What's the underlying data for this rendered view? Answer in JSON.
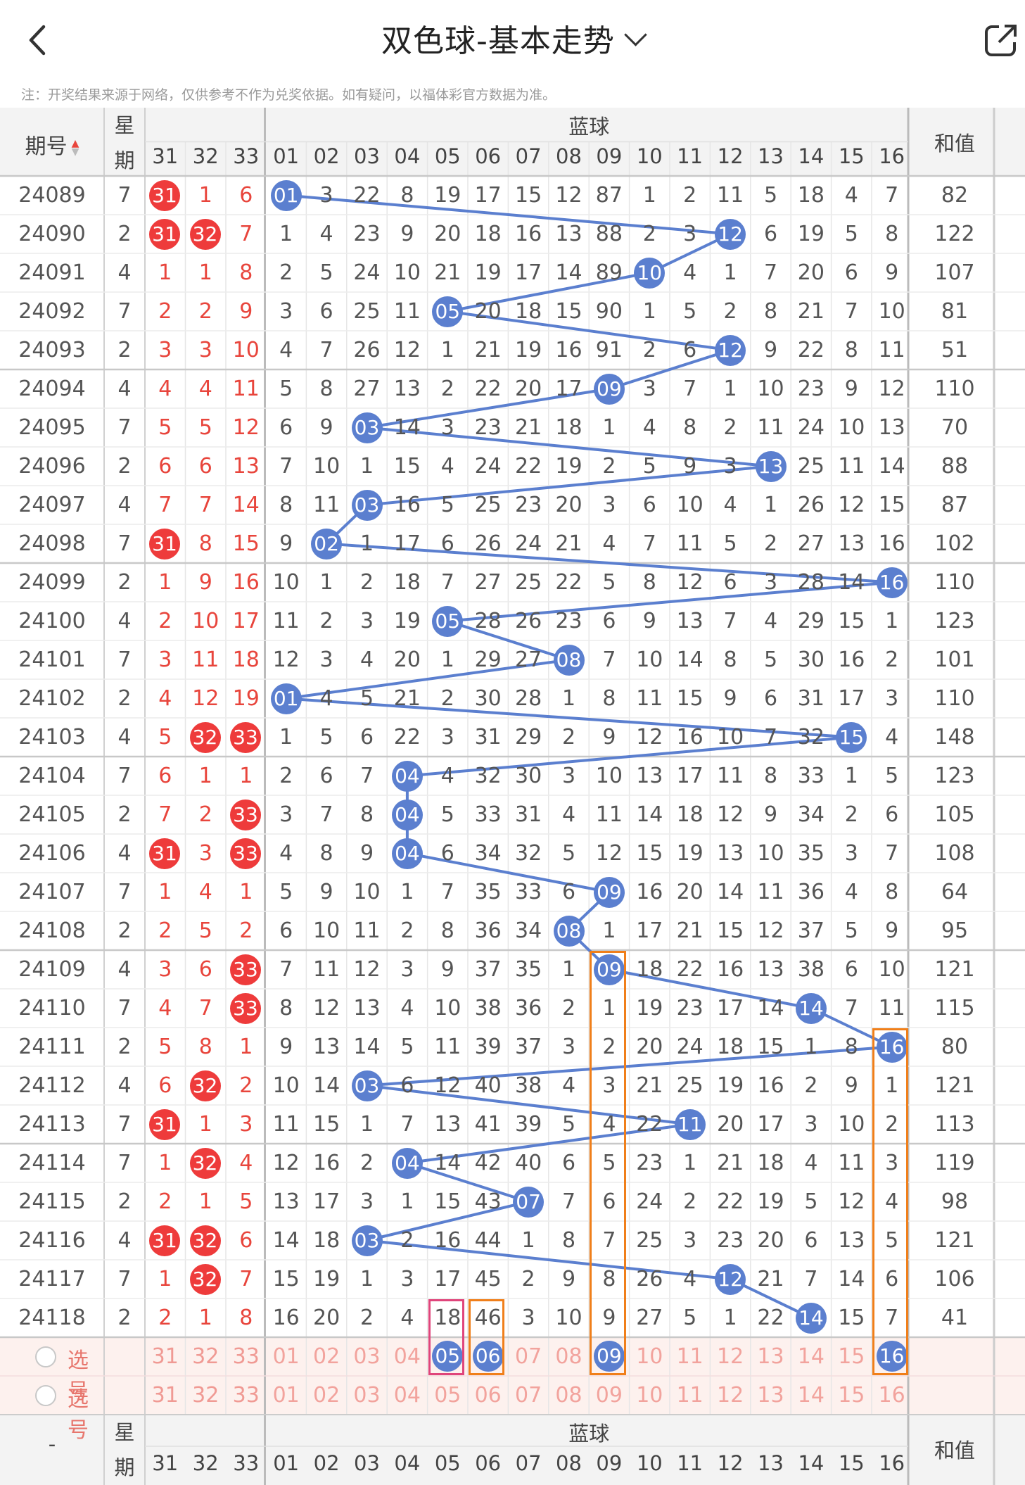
{
  "header": {
    "title": "双色球-基本走势"
  },
  "note": "注：开奖结果来源于网络，仅供参考不作为兑奖依据。如有疑问，以福体彩官方数据为准。",
  "table_header": {
    "issue_label": "期号",
    "week_label_1": "星",
    "week_label_2": "期",
    "blue_label": "蓝球",
    "sum_label": "和值",
    "red_cols": [
      "31",
      "32",
      "33"
    ],
    "blue_cols": [
      "01",
      "02",
      "03",
      "04",
      "05",
      "06",
      "07",
      "08",
      "09",
      "10",
      "11",
      "12",
      "13",
      "14",
      "15",
      "16"
    ]
  },
  "footer_header": {
    "issue_label": "-",
    "week_label_1": "星",
    "week_label_2": "期",
    "blue_label": "蓝球",
    "sum_label": "和值"
  },
  "select_label": "选号",
  "colors": {
    "red_ball": "#ee3b3b",
    "blue_ball": "#5b7fcf",
    "line": "#5b7fcf",
    "orange_box": "#f07f1a",
    "pink_box": "#e0457b",
    "header_bg": "#f3f3f3",
    "select_bg": "#fdf1ee"
  },
  "rows": [
    {
      "issue": "24089",
      "week": "7",
      "red": [
        "31",
        "1",
        "6"
      ],
      "blue": 1,
      "miss": [
        "",
        "3",
        "22",
        "8",
        "19",
        "17",
        "15",
        "12",
        "87",
        "1",
        "2",
        "11",
        "5",
        "18",
        "4",
        "7"
      ],
      "sum": "82"
    },
    {
      "issue": "24090",
      "week": "2",
      "red": [
        "31",
        "32",
        "7"
      ],
      "blue": 12,
      "miss": [
        "1",
        "4",
        "23",
        "9",
        "20",
        "18",
        "16",
        "13",
        "88",
        "2",
        "3",
        "",
        "6",
        "19",
        "5",
        "8"
      ],
      "sum": "122"
    },
    {
      "issue": "24091",
      "week": "4",
      "red": [
        "1",
        "1",
        "8"
      ],
      "blue": 10,
      "miss": [
        "2",
        "5",
        "24",
        "10",
        "21",
        "19",
        "17",
        "14",
        "89",
        "",
        "4",
        "1",
        "7",
        "20",
        "6",
        "9"
      ],
      "sum": "107"
    },
    {
      "issue": "24092",
      "week": "7",
      "red": [
        "2",
        "2",
        "9"
      ],
      "blue": 5,
      "miss": [
        "3",
        "6",
        "25",
        "11",
        "",
        "20",
        "18",
        "15",
        "90",
        "1",
        "5",
        "2",
        "8",
        "21",
        "7",
        "10"
      ],
      "sum": "81"
    },
    {
      "issue": "24093",
      "week": "2",
      "red": [
        "3",
        "3",
        "10"
      ],
      "blue": 12,
      "miss": [
        "4",
        "7",
        "26",
        "12",
        "1",
        "21",
        "19",
        "16",
        "91",
        "2",
        "6",
        "",
        "9",
        "22",
        "8",
        "11"
      ],
      "sum": "51"
    },
    {
      "issue": "24094",
      "week": "4",
      "red": [
        "4",
        "4",
        "11"
      ],
      "blue": 9,
      "miss": [
        "5",
        "8",
        "27",
        "13",
        "2",
        "22",
        "20",
        "17",
        "",
        "3",
        "7",
        "1",
        "10",
        "23",
        "9",
        "12"
      ],
      "sum": "110"
    },
    {
      "issue": "24095",
      "week": "7",
      "red": [
        "5",
        "5",
        "12"
      ],
      "blue": 3,
      "miss": [
        "6",
        "9",
        "",
        "14",
        "3",
        "23",
        "21",
        "18",
        "1",
        "4",
        "8",
        "2",
        "11",
        "24",
        "10",
        "13"
      ],
      "sum": "70"
    },
    {
      "issue": "24096",
      "week": "2",
      "red": [
        "6",
        "6",
        "13"
      ],
      "blue": 13,
      "miss": [
        "7",
        "10",
        "1",
        "15",
        "4",
        "24",
        "22",
        "19",
        "2",
        "5",
        "9",
        "3",
        "",
        "25",
        "11",
        "14"
      ],
      "sum": "88"
    },
    {
      "issue": "24097",
      "week": "4",
      "red": [
        "7",
        "7",
        "14"
      ],
      "blue": 3,
      "miss": [
        "8",
        "11",
        "",
        "16",
        "5",
        "25",
        "23",
        "20",
        "3",
        "6",
        "10",
        "4",
        "1",
        "26",
        "12",
        "15"
      ],
      "sum": "87"
    },
    {
      "issue": "24098",
      "week": "7",
      "red": [
        "31",
        "8",
        "15"
      ],
      "blue": 2,
      "miss": [
        "9",
        "",
        "1",
        "17",
        "6",
        "26",
        "24",
        "21",
        "4",
        "7",
        "11",
        "5",
        "2",
        "27",
        "13",
        "16"
      ],
      "sum": "102"
    },
    {
      "issue": "24099",
      "week": "2",
      "red": [
        "1",
        "9",
        "16"
      ],
      "blue": 16,
      "miss": [
        "10",
        "1",
        "2",
        "18",
        "7",
        "27",
        "25",
        "22",
        "5",
        "8",
        "12",
        "6",
        "3",
        "28",
        "14",
        ""
      ],
      "sum": "110"
    },
    {
      "issue": "24100",
      "week": "4",
      "red": [
        "2",
        "10",
        "17"
      ],
      "blue": 5,
      "miss": [
        "11",
        "2",
        "3",
        "19",
        "",
        "28",
        "26",
        "23",
        "6",
        "9",
        "13",
        "7",
        "4",
        "29",
        "15",
        "1"
      ],
      "sum": "123"
    },
    {
      "issue": "24101",
      "week": "7",
      "red": [
        "3",
        "11",
        "18"
      ],
      "blue": 8,
      "miss": [
        "12",
        "3",
        "4",
        "20",
        "1",
        "29",
        "27",
        "",
        "7",
        "10",
        "14",
        "8",
        "5",
        "30",
        "16",
        "2"
      ],
      "sum": "101"
    },
    {
      "issue": "24102",
      "week": "2",
      "red": [
        "4",
        "12",
        "19"
      ],
      "blue": 1,
      "miss": [
        "",
        "4",
        "5",
        "21",
        "2",
        "30",
        "28",
        "1",
        "8",
        "11",
        "15",
        "9",
        "6",
        "31",
        "17",
        "3"
      ],
      "sum": "110"
    },
    {
      "issue": "24103",
      "week": "4",
      "red": [
        "5",
        "32",
        "33"
      ],
      "blue": 15,
      "miss": [
        "1",
        "5",
        "6",
        "22",
        "3",
        "31",
        "29",
        "2",
        "9",
        "12",
        "16",
        "10",
        "7",
        "32",
        "",
        "4"
      ],
      "sum": "148"
    },
    {
      "issue": "24104",
      "week": "7",
      "red": [
        "6",
        "1",
        "1"
      ],
      "blue": 4,
      "miss": [
        "2",
        "6",
        "7",
        "",
        "4",
        "32",
        "30",
        "3",
        "10",
        "13",
        "17",
        "11",
        "8",
        "33",
        "1",
        "5"
      ],
      "sum": "123"
    },
    {
      "issue": "24105",
      "week": "2",
      "red": [
        "7",
        "2",
        "33"
      ],
      "blue": 4,
      "miss": [
        "3",
        "7",
        "8",
        "",
        "5",
        "33",
        "31",
        "4",
        "11",
        "14",
        "18",
        "12",
        "9",
        "34",
        "2",
        "6"
      ],
      "sum": "105"
    },
    {
      "issue": "24106",
      "week": "4",
      "red": [
        "31",
        "3",
        "33"
      ],
      "blue": 4,
      "miss": [
        "4",
        "8",
        "9",
        "",
        "6",
        "34",
        "32",
        "5",
        "12",
        "15",
        "19",
        "13",
        "10",
        "35",
        "3",
        "7"
      ],
      "sum": "108"
    },
    {
      "issue": "24107",
      "week": "7",
      "red": [
        "1",
        "4",
        "1"
      ],
      "blue": 9,
      "miss": [
        "5",
        "9",
        "10",
        "1",
        "7",
        "35",
        "33",
        "6",
        "",
        "16",
        "20",
        "14",
        "11",
        "36",
        "4",
        "8"
      ],
      "sum": "64"
    },
    {
      "issue": "24108",
      "week": "2",
      "red": [
        "2",
        "5",
        "2"
      ],
      "blue": 8,
      "miss": [
        "6",
        "10",
        "11",
        "2",
        "8",
        "36",
        "34",
        "",
        "1",
        "17",
        "21",
        "15",
        "12",
        "37",
        "5",
        "9"
      ],
      "sum": "95"
    },
    {
      "issue": "24109",
      "week": "4",
      "red": [
        "3",
        "6",
        "33"
      ],
      "blue": 9,
      "miss": [
        "7",
        "11",
        "12",
        "3",
        "9",
        "37",
        "35",
        "1",
        "",
        "18",
        "22",
        "16",
        "13",
        "38",
        "6",
        "10"
      ],
      "sum": "121"
    },
    {
      "issue": "24110",
      "week": "7",
      "red": [
        "4",
        "7",
        "33"
      ],
      "blue": 14,
      "miss": [
        "8",
        "12",
        "13",
        "4",
        "10",
        "38",
        "36",
        "2",
        "1",
        "19",
        "23",
        "17",
        "14",
        "",
        "7",
        "11"
      ],
      "sum": "115"
    },
    {
      "issue": "24111",
      "week": "2",
      "red": [
        "5",
        "8",
        "1"
      ],
      "blue": 16,
      "miss": [
        "9",
        "13",
        "14",
        "5",
        "11",
        "39",
        "37",
        "3",
        "2",
        "20",
        "24",
        "18",
        "15",
        "1",
        "8",
        ""
      ],
      "sum": "80"
    },
    {
      "issue": "24112",
      "week": "4",
      "red": [
        "6",
        "32",
        "2"
      ],
      "blue": 3,
      "miss": [
        "10",
        "14",
        "",
        "6",
        "12",
        "40",
        "38",
        "4",
        "3",
        "21",
        "25",
        "19",
        "16",
        "2",
        "9",
        "1"
      ],
      "sum": "121"
    },
    {
      "issue": "24113",
      "week": "7",
      "red": [
        "31",
        "1",
        "3"
      ],
      "blue": 11,
      "miss": [
        "11",
        "15",
        "1",
        "7",
        "13",
        "41",
        "39",
        "5",
        "4",
        "22",
        "",
        "20",
        "17",
        "3",
        "10",
        "2"
      ],
      "sum": "113"
    },
    {
      "issue": "24114",
      "week": "7",
      "red": [
        "1",
        "32",
        "4"
      ],
      "blue": 4,
      "miss": [
        "12",
        "16",
        "2",
        "",
        "14",
        "42",
        "40",
        "6",
        "5",
        "23",
        "1",
        "21",
        "18",
        "4",
        "11",
        "3"
      ],
      "sum": "119"
    },
    {
      "issue": "24115",
      "week": "2",
      "red": [
        "2",
        "1",
        "5"
      ],
      "blue": 7,
      "miss": [
        "13",
        "17",
        "3",
        "1",
        "15",
        "43",
        "",
        "7",
        "6",
        "24",
        "2",
        "22",
        "19",
        "5",
        "12",
        "4"
      ],
      "sum": "98"
    },
    {
      "issue": "24116",
      "week": "4",
      "red": [
        "31",
        "32",
        "6"
      ],
      "blue": 3,
      "miss": [
        "14",
        "18",
        "",
        "2",
        "16",
        "44",
        "1",
        "8",
        "7",
        "25",
        "3",
        "23",
        "20",
        "6",
        "13",
        "5"
      ],
      "sum": "121"
    },
    {
      "issue": "24117",
      "week": "7",
      "red": [
        "1",
        "32",
        "7"
      ],
      "blue": 12,
      "miss": [
        "15",
        "19",
        "1",
        "3",
        "17",
        "45",
        "2",
        "9",
        "8",
        "26",
        "4",
        "",
        "21",
        "7",
        "14",
        "6"
      ],
      "sum": "106"
    },
    {
      "issue": "24118",
      "week": "2",
      "red": [
        "2",
        "1",
        "8"
      ],
      "blue": 14,
      "miss": [
        "16",
        "20",
        "2",
        "4",
        "18",
        "46",
        "3",
        "10",
        "9",
        "27",
        "5",
        "1",
        "22",
        "",
        "15",
        "7"
      ],
      "sum": "41"
    }
  ],
  "select_rows": [
    {
      "red": [
        "31",
        "32",
        "33"
      ],
      "blue": [
        "01",
        "02",
        "03",
        "04",
        "05",
        "06",
        "07",
        "08",
        "09",
        "10",
        "11",
        "12",
        "13",
        "14",
        "15",
        "16"
      ],
      "selected_blue": [
        5,
        6,
        9,
        16
      ]
    },
    {
      "red": [
        "31",
        "32",
        "33"
      ],
      "blue": [
        "01",
        "02",
        "03",
        "04",
        "05",
        "06",
        "07",
        "08",
        "09",
        "10",
        "11",
        "12",
        "13",
        "14",
        "15",
        "16"
      ],
      "selected_blue": []
    }
  ]
}
